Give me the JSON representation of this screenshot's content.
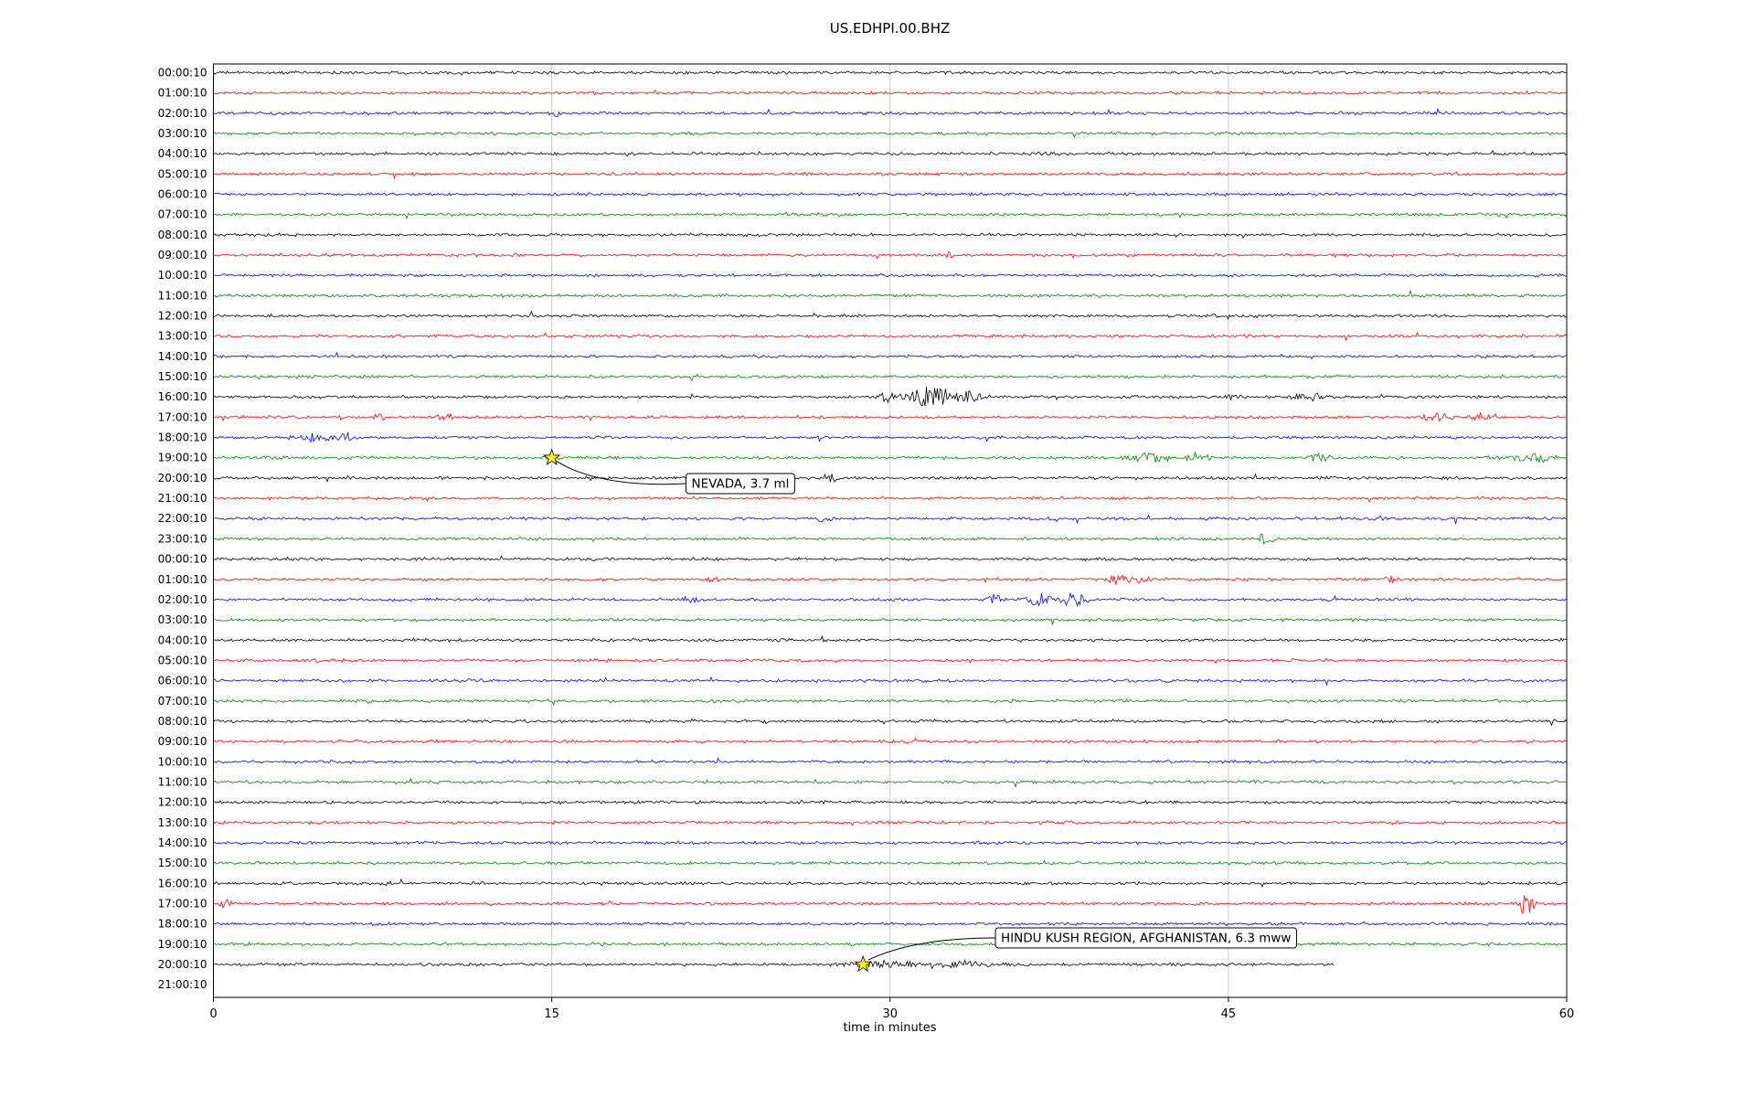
{
  "chart_data": {
    "type": "line",
    "subtype": "seismogram-helicorder-dayplot",
    "title": "US.EDHPI.00.BHZ",
    "xlabel": "time in minutes",
    "xlim": [
      0,
      60
    ],
    "x_ticks": [
      0,
      15,
      30,
      45,
      60
    ],
    "grid": "vertical lines at 15, 30, 45",
    "legend": "none",
    "colors": {
      "trace_cycle": [
        "#000000",
        "#ff0000",
        "#0000ff",
        "#008000"
      ],
      "grid": "#cccccc",
      "frame": "#000000",
      "event_marker": "#ffff00",
      "annotation_box_fill": "#ffffff",
      "annotation_box_border": "#000000"
    },
    "rows": [
      {
        "label": "00:00:10",
        "color": "#000000"
      },
      {
        "label": "01:00:10",
        "color": "#ff0000"
      },
      {
        "label": "02:00:10",
        "color": "#0000ff",
        "bursts": [
          {
            "t": 15.2,
            "w": 0.2,
            "a": 4
          }
        ]
      },
      {
        "label": "03:00:10",
        "color": "#008000"
      },
      {
        "label": "04:00:10",
        "color": "#000000",
        "bursts": [
          {
            "t": 18.5,
            "w": 0.2,
            "a": 3
          },
          {
            "t": 23.3,
            "w": 0.2,
            "a": 3
          }
        ]
      },
      {
        "label": "05:00:10",
        "color": "#ff0000"
      },
      {
        "label": "06:00:10",
        "color": "#0000ff"
      },
      {
        "label": "07:00:10",
        "color": "#008000"
      },
      {
        "label": "08:00:10",
        "color": "#000000"
      },
      {
        "label": "09:00:10",
        "color": "#ff0000",
        "bursts": [
          {
            "t": 32.6,
            "w": 0.12,
            "a": 4
          }
        ]
      },
      {
        "label": "10:00:10",
        "color": "#0000ff"
      },
      {
        "label": "11:00:10",
        "color": "#008000"
      },
      {
        "label": "12:00:10",
        "color": "#000000"
      },
      {
        "label": "13:00:10",
        "color": "#ff0000"
      },
      {
        "label": "14:00:10",
        "color": "#0000ff"
      },
      {
        "label": "15:00:10",
        "color": "#008000",
        "bursts": [
          {
            "t": 21.3,
            "w": 0.1,
            "a": 5
          }
        ]
      },
      {
        "label": "16:00:10",
        "color": "#000000",
        "bursts": [
          {
            "t": 29.9,
            "w": 0.3,
            "a": 6
          },
          {
            "t": 31.8,
            "w": 0.7,
            "a": 12
          },
          {
            "t": 33.4,
            "w": 0.5,
            "a": 7
          },
          {
            "t": 45.2,
            "w": 0.3,
            "a": 4
          },
          {
            "t": 48.6,
            "w": 0.6,
            "a": 5
          }
        ]
      },
      {
        "label": "17:00:10",
        "color": "#ff0000",
        "bursts": [
          {
            "t": 7.3,
            "w": 0.2,
            "a": 4
          },
          {
            "t": 10.3,
            "w": 0.3,
            "a": 4
          },
          {
            "t": 54.2,
            "w": 0.5,
            "a": 5
          },
          {
            "t": 56.2,
            "w": 0.4,
            "a": 6
          }
        ]
      },
      {
        "label": "18:00:10",
        "color": "#0000ff",
        "bursts": [
          {
            "t": 4.6,
            "w": 0.8,
            "a": 5
          },
          {
            "t": 5.9,
            "w": 0.4,
            "a": 5
          }
        ]
      },
      {
        "label": "19:00:10",
        "color": "#008000",
        "bursts": [
          {
            "t": 41.6,
            "w": 0.8,
            "a": 6
          },
          {
            "t": 43.6,
            "w": 0.5,
            "a": 5
          },
          {
            "t": 49.1,
            "w": 0.3,
            "a": 7
          },
          {
            "t": 58.6,
            "w": 0.8,
            "a": 5
          }
        ]
      },
      {
        "label": "20:00:10",
        "color": "#000000",
        "bursts": [
          {
            "t": 27.4,
            "w": 0.2,
            "a": 5
          }
        ]
      },
      {
        "label": "21:00:10",
        "color": "#ff0000"
      },
      {
        "label": "22:00:10",
        "color": "#0000ff",
        "bursts": [
          {
            "t": 27.1,
            "w": 0.2,
            "a": 5
          },
          {
            "t": 37.2,
            "w": 0.2,
            "a": 3
          },
          {
            "t": 51.6,
            "w": 0.2,
            "a": 4
          }
        ]
      },
      {
        "label": "23:00:10",
        "color": "#008000",
        "bursts": [
          {
            "t": 46.6,
            "w": 0.25,
            "a": 6
          }
        ]
      },
      {
        "label": "00:00:10",
        "color": "#000000"
      },
      {
        "label": "01:00:10",
        "color": "#ff0000",
        "bursts": [
          {
            "t": 22.1,
            "w": 0.3,
            "a": 4
          },
          {
            "t": 40.2,
            "w": 0.5,
            "a": 5
          },
          {
            "t": 41.2,
            "w": 0.3,
            "a": 5
          },
          {
            "t": 52.2,
            "w": 0.3,
            "a": 4
          }
        ]
      },
      {
        "label": "02:00:10",
        "color": "#0000ff",
        "bursts": [
          {
            "t": 21.2,
            "w": 0.3,
            "a": 4
          },
          {
            "t": 34.6,
            "w": 0.3,
            "a": 5
          },
          {
            "t": 36.6,
            "w": 0.5,
            "a": 7
          },
          {
            "t": 38.1,
            "w": 0.4,
            "a": 9
          }
        ]
      },
      {
        "label": "03:00:10",
        "color": "#008000"
      },
      {
        "label": "04:00:10",
        "color": "#000000"
      },
      {
        "label": "05:00:10",
        "color": "#ff0000"
      },
      {
        "label": "06:00:10",
        "color": "#0000ff"
      },
      {
        "label": "07:00:10",
        "color": "#008000"
      },
      {
        "label": "08:00:10",
        "color": "#000000"
      },
      {
        "label": "09:00:10",
        "color": "#ff0000"
      },
      {
        "label": "10:00:10",
        "color": "#0000ff"
      },
      {
        "label": "11:00:10",
        "color": "#008000"
      },
      {
        "label": "12:00:10",
        "color": "#000000",
        "bursts": [
          {
            "t": 15.4,
            "w": 0.1,
            "a": 4
          }
        ]
      },
      {
        "label": "13:00:10",
        "color": "#ff0000"
      },
      {
        "label": "14:00:10",
        "color": "#0000ff",
        "bursts": [
          {
            "t": 33.9,
            "w": 0.12,
            "a": 3
          }
        ]
      },
      {
        "label": "15:00:10",
        "color": "#008000"
      },
      {
        "label": "16:00:10",
        "color": "#000000",
        "bursts": [
          {
            "t": 7.6,
            "w": 0.12,
            "a": 4
          }
        ]
      },
      {
        "label": "17:00:10",
        "color": "#ff0000",
        "bursts": [
          {
            "t": 0.6,
            "w": 0.3,
            "a": 4
          },
          {
            "t": 58.2,
            "w": 0.25,
            "a": 14
          }
        ]
      },
      {
        "label": "18:00:10",
        "color": "#0000ff"
      },
      {
        "label": "19:00:10",
        "color": "#008000"
      },
      {
        "label": "20:00:10",
        "color": "#000000",
        "end": 49.7,
        "bursts": [
          {
            "t": 29.6,
            "w": 1.2,
            "a": 4
          },
          {
            "t": 33.0,
            "w": 2.0,
            "a": 3
          }
        ]
      },
      {
        "label": "21:00:10",
        "color": "#ff0000",
        "no_data": true
      }
    ],
    "events": [
      {
        "label": "NEVADA, 3.7 ml",
        "row_index": 19,
        "row_label": "19:00:10",
        "x_minutes": 15.0,
        "marker": "yellow-star"
      },
      {
        "label": "HINDU KUSH REGION, AFGHANISTAN, 6.3 mww",
        "row_index": 44,
        "row_label": "20:00:10",
        "x_minutes": 28.8,
        "marker": "yellow-star"
      }
    ]
  }
}
